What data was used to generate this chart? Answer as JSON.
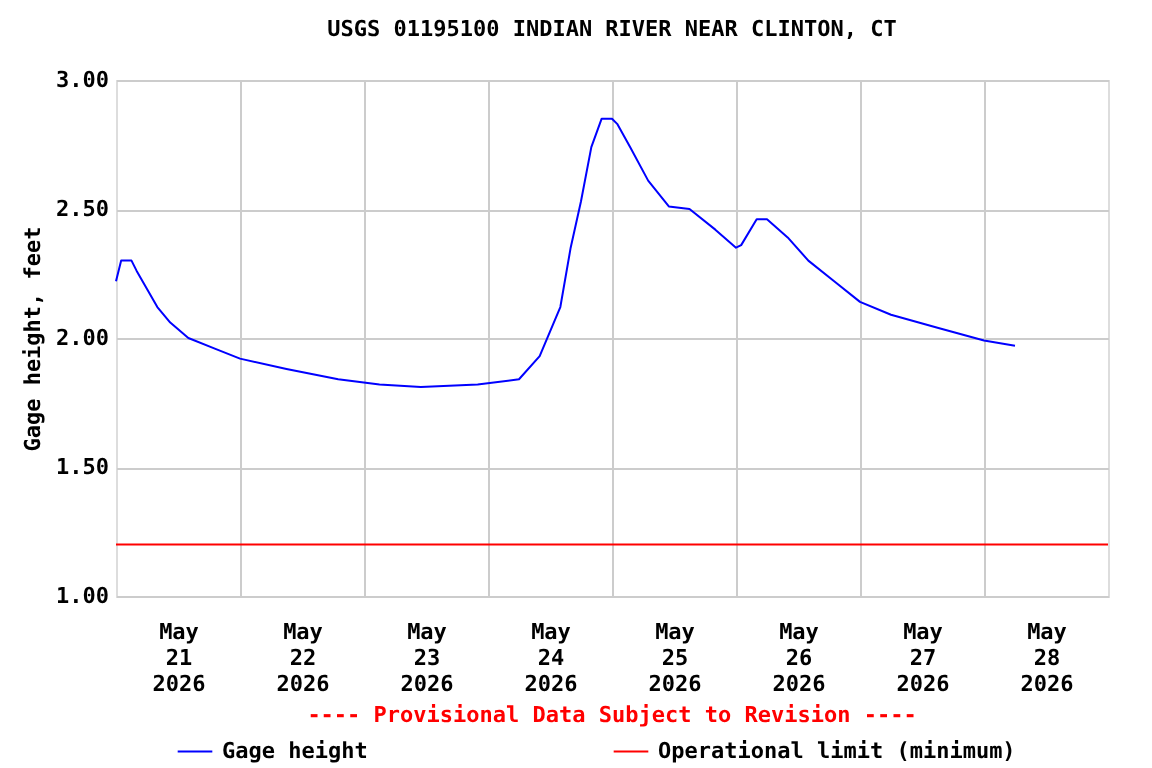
{
  "chart_data": {
    "type": "line",
    "title": "USGS 01195100 INDIAN RIVER NEAR CLINTON, CT",
    "ylabel": "Gage height, feet",
    "x": [
      "2026-05-21T00:00",
      "2026-05-21T01:00",
      "2026-05-21T03:00",
      "2026-05-21T04:00",
      "2026-05-21T06:00",
      "2026-05-21T08:00",
      "2026-05-21T10:30",
      "2026-05-21T14:00",
      "2026-05-21T19:00",
      "2026-05-22T00:00",
      "2026-05-22T09:00",
      "2026-05-22T19:00",
      "2026-05-23T03:00",
      "2026-05-23T11:00",
      "2026-05-23T22:00",
      "2026-05-24T06:00",
      "2026-05-24T10:00",
      "2026-05-24T14:00",
      "2026-05-24T16:00",
      "2026-05-24T18:00",
      "2026-05-24T20:00",
      "2026-05-24T22:00",
      "2026-05-25T00:00",
      "2026-05-25T01:00",
      "2026-05-25T03:30",
      "2026-05-25T07:00",
      "2026-05-25T11:00",
      "2026-05-25T15:00",
      "2026-05-25T20:00",
      "2026-05-26T00:00",
      "2026-05-26T01:00",
      "2026-05-26T04:00",
      "2026-05-26T06:00",
      "2026-05-26T10:00",
      "2026-05-26T14:00",
      "2026-05-26T19:00",
      "2026-05-27T00:00",
      "2026-05-27T06:00",
      "2026-05-27T15:00",
      "2026-05-28T00:00",
      "2026-05-28T06:00"
    ],
    "series": [
      {
        "name": "Gage height",
        "color": "#0000ff",
        "values": [
          2.22,
          2.3,
          2.3,
          2.26,
          2.19,
          2.12,
          2.06,
          2.0,
          1.96,
          1.92,
          1.88,
          1.84,
          1.82,
          1.81,
          1.82,
          1.84,
          1.93,
          2.12,
          2.35,
          2.53,
          2.74,
          2.85,
          2.85,
          2.83,
          2.74,
          2.61,
          2.51,
          2.5,
          2.42,
          2.35,
          2.36,
          2.46,
          2.46,
          2.39,
          2.3,
          2.22,
          2.14,
          2.09,
          2.04,
          1.99,
          1.97
        ]
      }
    ],
    "ref_lines": [
      {
        "axis": "y",
        "value": 1.2,
        "label": "Operational limit (minimum)",
        "color": "#ff0000"
      }
    ],
    "xlim": [
      "2026-05-21T00:00",
      "2026-05-29T00:00"
    ],
    "xticks": [
      {
        "value": "2026-05-21T12:00",
        "label": "May 21 2026"
      },
      {
        "value": "2026-05-22T00:00",
        "label": null
      },
      {
        "value": "2026-05-22T12:00",
        "label": "May 22 2026"
      },
      {
        "value": "2026-05-23T00:00",
        "label": null
      },
      {
        "value": "2026-05-23T12:00",
        "label": "May 23 2026"
      },
      {
        "value": "2026-05-24T00:00",
        "label": null
      },
      {
        "value": "2026-05-24T12:00",
        "label": "May 24 2026"
      },
      {
        "value": "2026-05-25T00:00",
        "label": null
      },
      {
        "value": "2026-05-25T12:00",
        "label": "May 25 2026"
      },
      {
        "value": "2026-05-26T00:00",
        "label": null
      },
      {
        "value": "2026-05-26T12:00",
        "label": "May 26 2026"
      },
      {
        "value": "2026-05-27T00:00",
        "label": null
      },
      {
        "value": "2026-05-27T12:00",
        "label": "May 27 2026"
      },
      {
        "value": "2026-05-28T00:00",
        "label": null
      },
      {
        "value": "2026-05-28T12:00",
        "label": "May 28 2026"
      }
    ],
    "ylim": [
      1.0,
      3.0
    ],
    "yticks": [
      {
        "value": 1.0,
        "label": "1.00"
      },
      {
        "value": 1.5,
        "label": "1.50"
      },
      {
        "value": 2.0,
        "label": "2.00"
      },
      {
        "value": 2.5,
        "label": "2.50"
      },
      {
        "value": 3.0,
        "label": "3.00"
      }
    ],
    "grid": true,
    "legend": "bottom",
    "line_style": "solid",
    "marker": "none",
    "annotations": [
      "---- Provisional Data Subject to Revision ----"
    ]
  }
}
